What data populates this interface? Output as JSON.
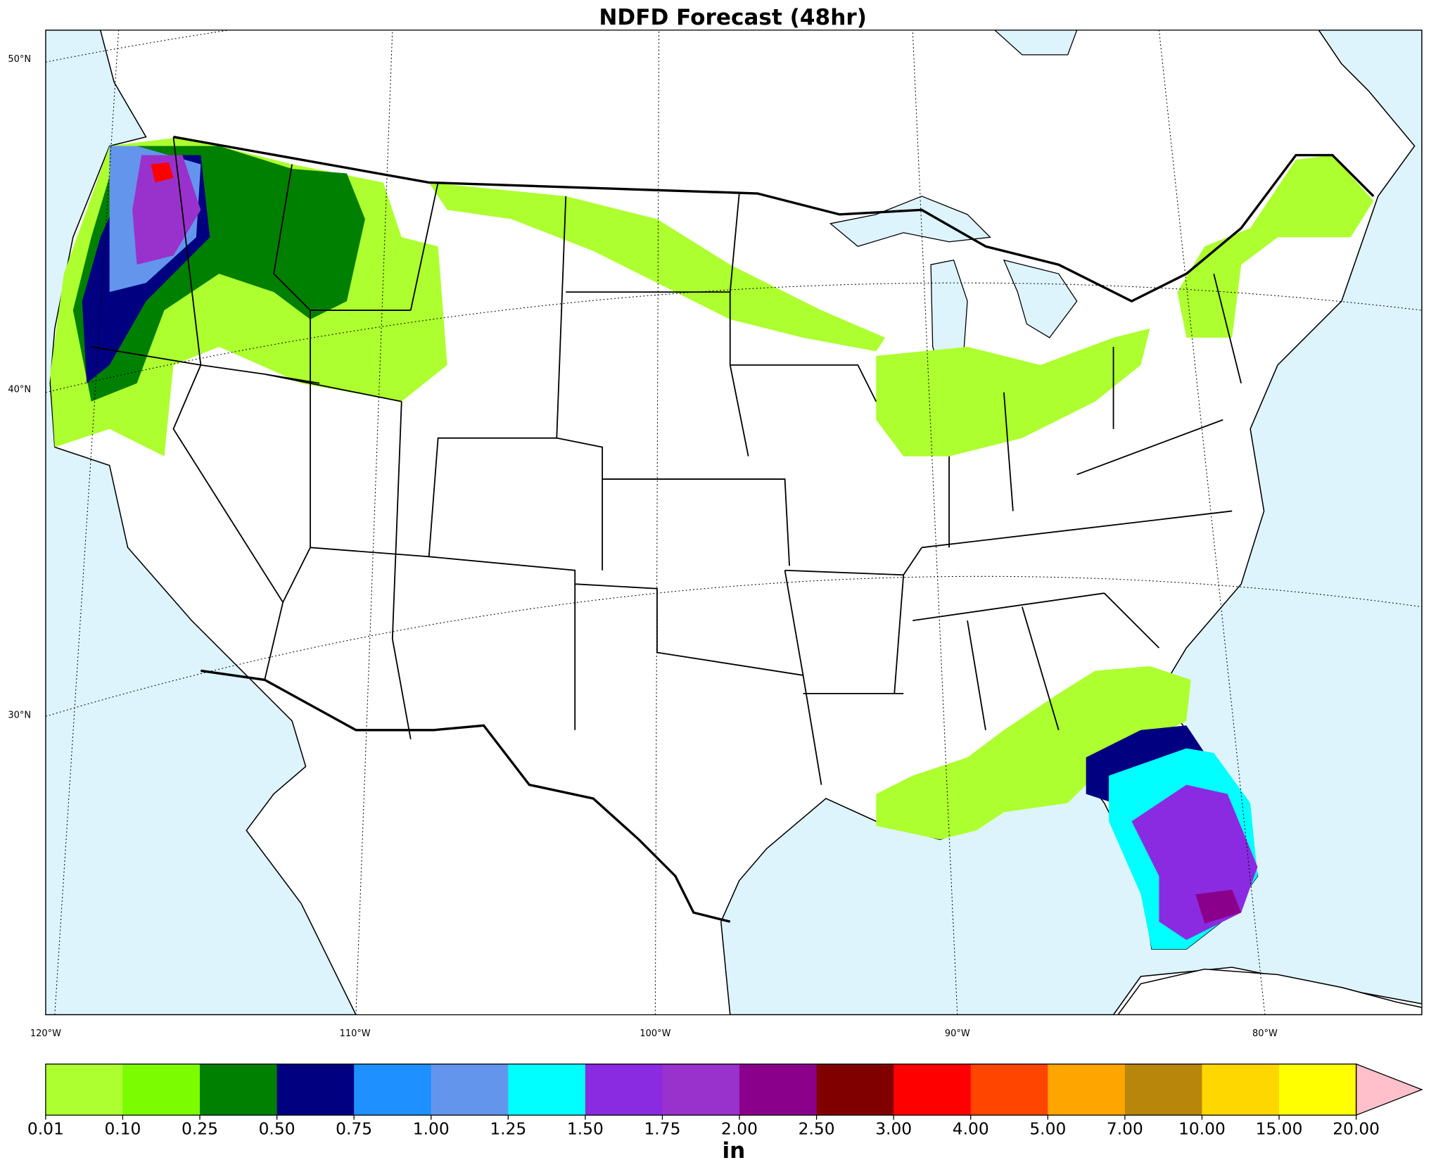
{
  "title": "NDFD Forecast (48hr)",
  "map": {
    "lat_labels": [
      "50°N",
      "40°N",
      "30°N"
    ],
    "lon_labels": [
      "120°W",
      "110°W",
      "100°W",
      "90°W",
      "80°W"
    ]
  },
  "colorbar": {
    "ticks": [
      0.01,
      {
        "value": 0.1,
        "label": "0.10"
      },
      0.25,
      {
        "value": 0.5,
        "label": "0.50"
      },
      0.75,
      {
        "value": 1,
        "label": "1.00"
      },
      1.25,
      {
        "value": 1.5,
        "label": "1.50"
      },
      1.75,
      {
        "value": 2,
        "label": "2.00"
      },
      {
        "value": 2.5,
        "label": "2.50"
      },
      {
        "value": 3,
        "label": "3.00"
      },
      {
        "value": 4,
        "label": "4.00"
      },
      {
        "value": 5,
        "label": "5.00"
      },
      {
        "value": 7,
        "label": "7.00"
      },
      {
        "value": 10,
        "label": "10.00"
      },
      {
        "value": 15,
        "label": "15.00"
      },
      {
        "value": 20,
        "label": "20.00"
      }
    ],
    "colors": [
      "#adff2f",
      "#7cfc00",
      "#008000",
      "#000080",
      "#1e90ff",
      "#6495ed",
      "#00ffff",
      "#8a2be2",
      "#9932cc",
      "#8b008b",
      "#800000",
      "#ff0000",
      "#ff4500",
      "#ffa500",
      "#b8860b",
      "#ffd700",
      "#ffff00"
    ],
    "extend_color": "#ffc0cb",
    "label": "in"
  }
}
